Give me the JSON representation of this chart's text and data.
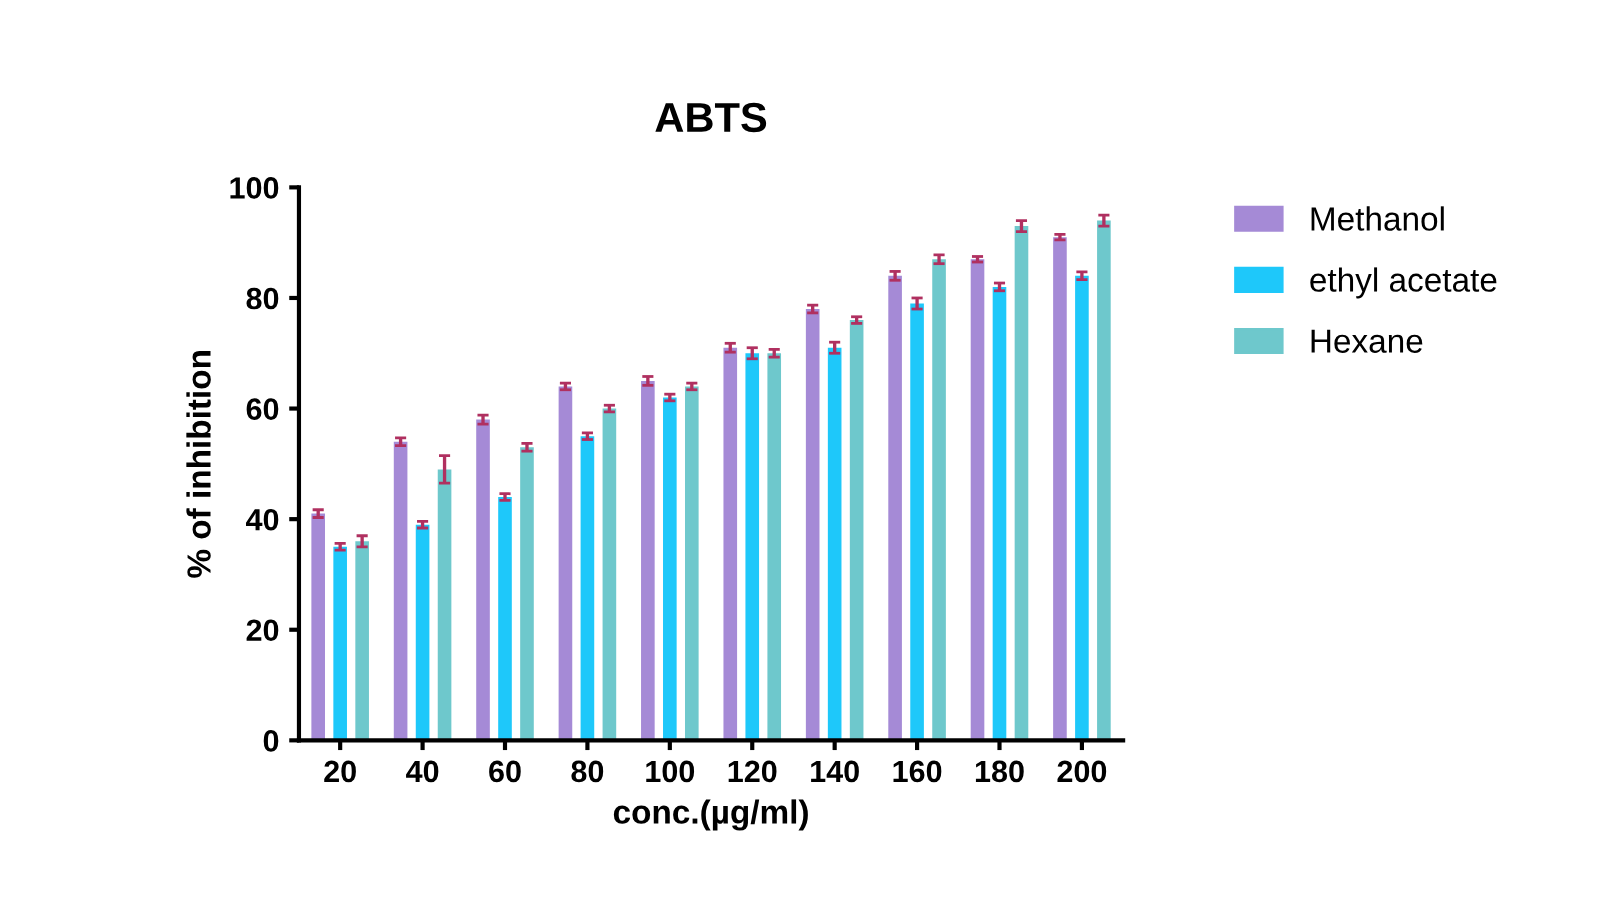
{
  "chart_data": {
    "type": "bar",
    "title": "ABTS",
    "xlabel": "conc.(µg/ml)",
    "ylabel": "% of inhibition",
    "categories": [
      "20",
      "40",
      "60",
      "80",
      "100",
      "120",
      "140",
      "160",
      "180",
      "200"
    ],
    "series": [
      {
        "name": "Methanol",
        "color": "#a58ad6",
        "values": [
          41,
          54,
          58,
          64,
          65,
          71,
          78,
          84,
          87,
          91
        ],
        "errors": [
          0.7,
          0.7,
          0.8,
          0.6,
          0.8,
          0.8,
          0.7,
          0.8,
          0.5,
          0.5
        ]
      },
      {
        "name": "ethyl acetate",
        "color": "#1ec8fa",
        "values": [
          35,
          39,
          44,
          55,
          62,
          70,
          71,
          79,
          82,
          84
        ],
        "errors": [
          0.6,
          0.6,
          0.6,
          0.6,
          0.6,
          1,
          1,
          1,
          0.7,
          0.7
        ]
      },
      {
        "name": "Hexane",
        "color": "#6ec8cc",
        "values": [
          36,
          49,
          53,
          60,
          64,
          70,
          76,
          87,
          93,
          94
        ],
        "errors": [
          1,
          2.5,
          0.7,
          0.6,
          0.6,
          0.7,
          0.6,
          0.8,
          1,
          1
        ]
      }
    ],
    "ylim": [
      0,
      100
    ],
    "yticks": [
      0,
      20,
      40,
      60,
      80,
      100
    ],
    "grid": false,
    "legend": "right"
  }
}
